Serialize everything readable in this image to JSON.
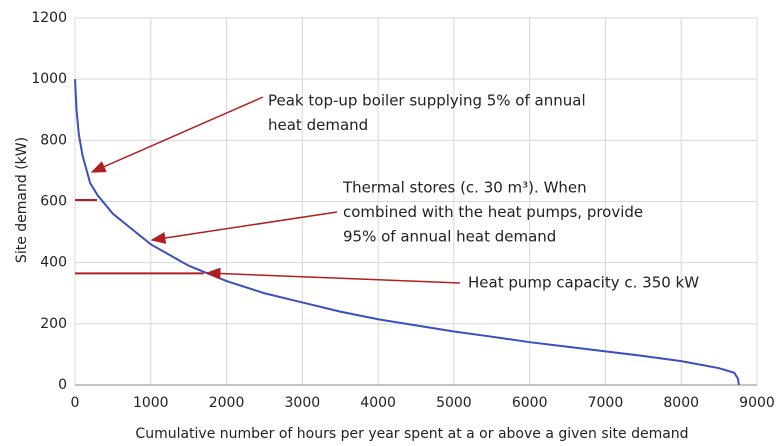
{
  "chart_data": {
    "type": "line",
    "y_label": "Site demand (kW)",
    "x_label": "Cumulative number of hours per year spent at a or above a given site demand",
    "x": [
      0,
      20,
      50,
      100,
      200,
      300,
      500,
      700,
      1000,
      1500,
      2000,
      2500,
      3000,
      3500,
      4000,
      4500,
      5000,
      5500,
      6000,
      6500,
      7000,
      7500,
      8000,
      8500,
      8700,
      8750,
      8760
    ],
    "series": [
      {
        "color": "#3a4fc0",
        "values": [
          1000,
          900,
          820,
          750,
          660,
          620,
          560,
          520,
          460,
          390,
          340,
          300,
          270,
          240,
          215,
          195,
          175,
          158,
          140,
          125,
          110,
          95,
          78,
          55,
          40,
          20,
          0
        ]
      }
    ],
    "reference_lines": [
      {
        "y": 605,
        "x_end": 290
      },
      {
        "y": 365,
        "x_end": 1700
      }
    ],
    "reference_color": "#b02020",
    "annotations": [
      {
        "lines": [
          "Peak top-up boiler supplying 5% of annual",
          "heat demand"
        ]
      },
      {
        "lines": [
          "Thermal stores (c. 30 m³). When",
          "combined with the heat pumps, provide",
          "95% of annual heat demand"
        ]
      },
      {
        "lines": [
          "Heat pump capacity c. 350 kW"
        ]
      }
    ],
    "xlim": [
      0,
      9000
    ],
    "xticks": [
      0,
      1000,
      2000,
      3000,
      4000,
      5000,
      6000,
      7000,
      8000,
      9000
    ],
    "ylim": [
      0,
      1200
    ],
    "yticks": [
      0,
      200,
      400,
      600,
      800,
      1000,
      1200
    ],
    "grid": true
  }
}
